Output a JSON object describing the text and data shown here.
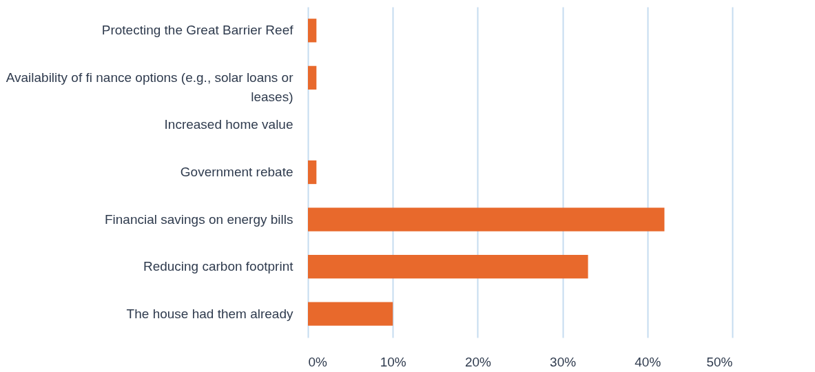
{
  "chart_data": {
    "type": "bar",
    "orientation": "horizontal",
    "categories": [
      "Protecting the Great Barrier Reef",
      "Availability of fi nance options (e.g., solar loans or leases)",
      "Increased home value",
      "Government rebate",
      "Financial savings on energy bills",
      "Reducing carbon footprint",
      "The house had them already"
    ],
    "values": [
      1,
      1,
      0,
      1,
      42,
      33,
      10
    ],
    "color": "#e8692c",
    "xlim": [
      0,
      50
    ],
    "xticks": [
      {
        "value": 0,
        "label": "0%"
      },
      {
        "value": 10,
        "label": "10%"
      },
      {
        "value": 20,
        "label": "20%"
      },
      {
        "value": 30,
        "label": "30%"
      },
      {
        "value": 40,
        "label": "40%"
      },
      {
        "value": 50,
        "label": "50%"
      }
    ],
    "grid": "x"
  }
}
